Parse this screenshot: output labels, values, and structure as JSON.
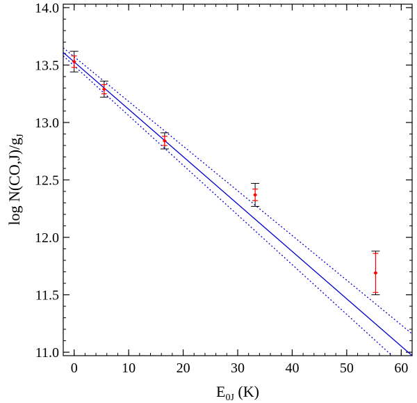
{
  "chart_data": {
    "type": "scatter",
    "title": "",
    "xlabel_main": "E",
    "xlabel_sub": "0J",
    "xlabel_unit": " (K)",
    "ylabel_main": "log N(CO,J)/g",
    "ylabel_sub": "J",
    "xlim": [
      -2,
      62
    ],
    "ylim": [
      10.97,
      14.03
    ],
    "x_ticks": [
      0,
      10,
      20,
      30,
      40,
      50,
      60
    ],
    "x_tick_labels": [
      "0",
      "10",
      "20",
      "30",
      "40",
      "50",
      "60"
    ],
    "y_ticks": [
      11.0,
      11.5,
      12.0,
      12.5,
      13.0,
      13.5,
      14.0
    ],
    "y_tick_labels": [
      "11.0",
      "11.5",
      "12.0",
      "12.5",
      "13.0",
      "13.5",
      "14.0"
    ],
    "x_minor_step": 2,
    "y_minor_step": 0.1,
    "grid": false,
    "points": [
      {
        "x": 0.0,
        "y": 13.53,
        "err_outer": 0.09,
        "err_inner": 0.05
      },
      {
        "x": 5.5,
        "y": 13.29,
        "err_outer": 0.07,
        "err_inner": 0.04
      },
      {
        "x": 16.6,
        "y": 12.84,
        "err_outer": 0.07,
        "err_inner": 0.04
      },
      {
        "x": 33.2,
        "y": 12.37,
        "err_outer": 0.1,
        "err_inner": 0.05
      },
      {
        "x": 55.3,
        "y": 11.69,
        "err_outer": 0.19,
        "err_inner": 0.17
      }
    ],
    "fit_line": {
      "x": [
        -2,
        62
      ],
      "y": [
        13.61,
        10.97
      ]
    },
    "fit_upper": {
      "x": [
        -2,
        62
      ],
      "y": [
        13.65,
        11.16
      ]
    },
    "fit_lower": {
      "x": [
        -2,
        62
      ],
      "y": [
        13.58,
        10.81
      ]
    },
    "colors": {
      "points": "#ff0000",
      "inner_error": "#ff0000",
      "outer_error": "#000000",
      "fit": "#0000cc",
      "axis": "#000000"
    }
  }
}
